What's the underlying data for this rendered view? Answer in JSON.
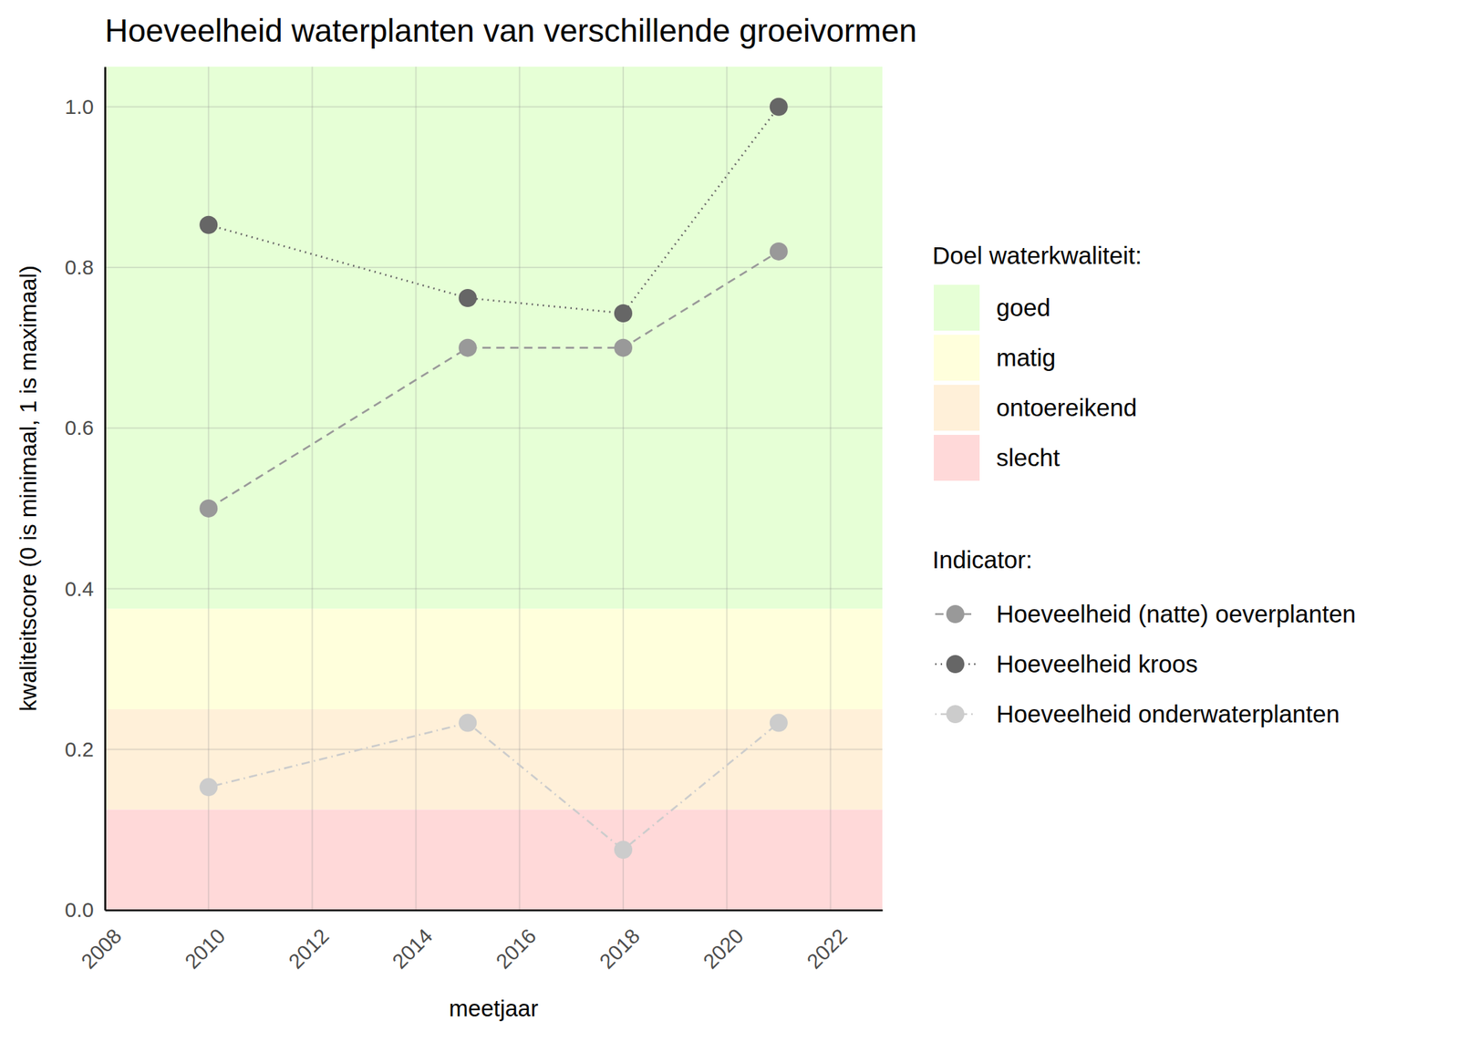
{
  "chart_data": {
    "type": "line",
    "title": "Hoeveelheid waterplanten van verschillende groeivormen",
    "x_label": "meetjaar",
    "y_label": "kwaliteitscore (0 is minimaal, 1 is maximaal)",
    "x": [
      2010,
      2015,
      2018,
      2021
    ],
    "series": [
      {
        "name": "Hoeveelheid (natte) oeverplanten",
        "color": "#999999",
        "marker": "circle",
        "line_style": "dashed",
        "values": [
          0.5,
          0.7,
          0.7,
          0.82
        ]
      },
      {
        "name": "Hoeveelheid kroos",
        "color": "#666666",
        "marker": "circle",
        "line_style": "dotted",
        "values": [
          0.853,
          0.762,
          0.743,
          1.0
        ]
      },
      {
        "name": "Hoeveelheid onderwaterplanten",
        "color": "#cccccc",
        "marker": "circle",
        "line_style": "dotdash",
        "values": [
          0.153,
          0.233,
          0.075,
          0.233
        ]
      }
    ],
    "bands_title": "Doel waterkwaliteit:",
    "bands": [
      {
        "name": "goed",
        "color": "#e6ffd6",
        "from": 0.375,
        "to": 1.05
      },
      {
        "name": "matig",
        "color": "#ffffdc",
        "from": 0.25,
        "to": 0.375
      },
      {
        "name": "ontoereikend",
        "color": "#fff0d9",
        "from": 0.125,
        "to": 0.25
      },
      {
        "name": "slecht",
        "color": "#ffd9d9",
        "from": 0,
        "to": 0.125
      }
    ],
    "legend_title": "Indicator:",
    "xlim": [
      2008,
      2023
    ],
    "xticks": [
      2008,
      2010,
      2012,
      2014,
      2016,
      2018,
      2020,
      2022
    ],
    "ylim": [
      0,
      1.05
    ],
    "yticks": [
      {
        "value": 0,
        "label": "0.0"
      },
      0.2,
      0.4,
      0.6,
      0.8,
      {
        "value": 1,
        "label": "1.0"
      }
    ],
    "grid": true,
    "legend": "right"
  }
}
